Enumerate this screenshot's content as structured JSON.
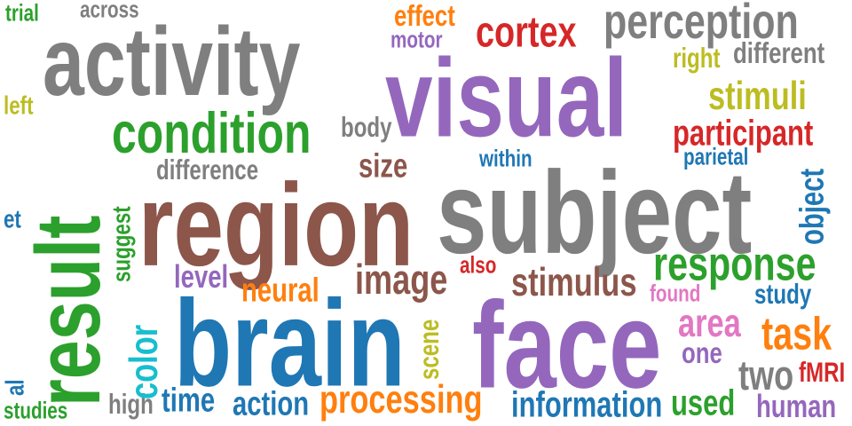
{
  "palette": {
    "gray": "#7f7f7f",
    "purple": "#9467bd",
    "green": "#2ca02c",
    "brown": "#8c564b",
    "blue": "#1f77b4",
    "red": "#d62728",
    "orange": "#ff7f0e",
    "olive": "#bcbd22",
    "cyan": "#17becf",
    "pink": "#e377c2"
  },
  "words": [
    {
      "text": "trial",
      "color": "green"
    },
    {
      "text": "across",
      "color": "gray"
    },
    {
      "text": "effect",
      "color": "orange"
    },
    {
      "text": "cortex",
      "color": "red"
    },
    {
      "text": "perception",
      "color": "gray"
    },
    {
      "text": "motor",
      "color": "purple"
    },
    {
      "text": "activity",
      "color": "gray"
    },
    {
      "text": "right",
      "color": "olive"
    },
    {
      "text": "different",
      "color": "gray"
    },
    {
      "text": "visual",
      "color": "purple"
    },
    {
      "text": "left",
      "color": "olive"
    },
    {
      "text": "stimuli",
      "color": "olive"
    },
    {
      "text": "condition",
      "color": "green"
    },
    {
      "text": "body",
      "color": "gray"
    },
    {
      "text": "participant",
      "color": "red"
    },
    {
      "text": "size",
      "color": "brown"
    },
    {
      "text": "difference",
      "color": "gray"
    },
    {
      "text": "within",
      "color": "blue"
    },
    {
      "text": "parietal",
      "color": "blue"
    },
    {
      "text": "result",
      "color": "green"
    },
    {
      "text": "object",
      "color": "blue"
    },
    {
      "text": "region",
      "color": "brown"
    },
    {
      "text": "subject",
      "color": "gray"
    },
    {
      "text": "et",
      "color": "blue"
    },
    {
      "text": "suggest",
      "color": "green"
    },
    {
      "text": "also",
      "color": "red"
    },
    {
      "text": "response",
      "color": "green"
    },
    {
      "text": "level",
      "color": "purple"
    },
    {
      "text": "image",
      "color": "brown"
    },
    {
      "text": "stimulus",
      "color": "brown"
    },
    {
      "text": "neural",
      "color": "orange"
    },
    {
      "text": "found",
      "color": "pink"
    },
    {
      "text": "study",
      "color": "blue"
    },
    {
      "text": "color",
      "color": "cyan"
    },
    {
      "text": "brain",
      "color": "blue"
    },
    {
      "text": "face",
      "color": "purple"
    },
    {
      "text": "scene",
      "color": "olive"
    },
    {
      "text": "area",
      "color": "pink"
    },
    {
      "text": "task",
      "color": "orange"
    },
    {
      "text": "one",
      "color": "purple"
    },
    {
      "text": "two",
      "color": "gray"
    },
    {
      "text": "fMRI",
      "color": "red"
    },
    {
      "text": "al",
      "color": "blue"
    },
    {
      "text": "high",
      "color": "gray"
    },
    {
      "text": "time",
      "color": "blue"
    },
    {
      "text": "action",
      "color": "blue"
    },
    {
      "text": "processing",
      "color": "orange"
    },
    {
      "text": "information",
      "color": "blue"
    },
    {
      "text": "used",
      "color": "green"
    },
    {
      "text": "human",
      "color": "purple"
    },
    {
      "text": "studies",
      "color": "green"
    }
  ]
}
